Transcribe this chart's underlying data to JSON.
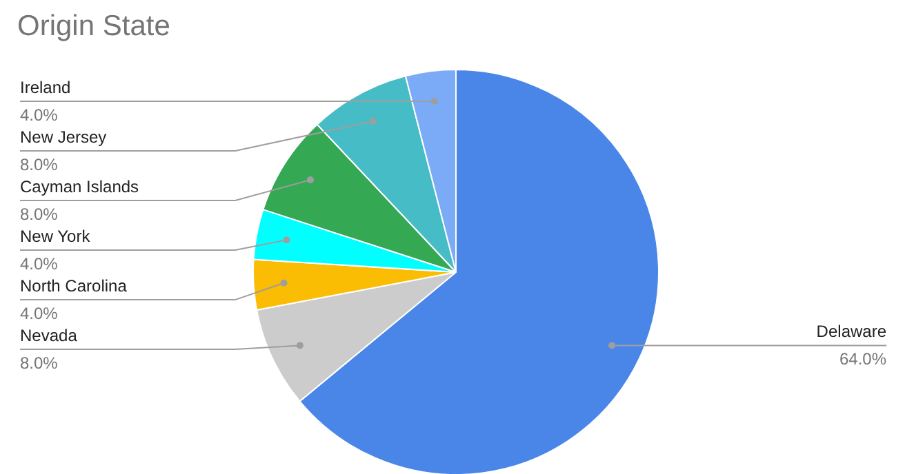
{
  "chart_data": {
    "type": "pie",
    "title": "Origin State",
    "categories": [
      "Delaware",
      "Nevada",
      "North Carolina",
      "New York",
      "Cayman Islands",
      "New Jersey",
      "Ireland"
    ],
    "values": [
      64,
      8,
      4,
      4,
      8,
      8,
      4
    ],
    "value_labels": [
      "64.0%",
      "8.0%",
      "4.0%",
      "4.0%",
      "8.0%",
      "8.0%",
      "4.0%"
    ],
    "colors": [
      "#4a86e8",
      "#cccccc",
      "#fbbc04",
      "#00ffff",
      "#34a853",
      "#46bdc6",
      "#7baaf7"
    ]
  }
}
